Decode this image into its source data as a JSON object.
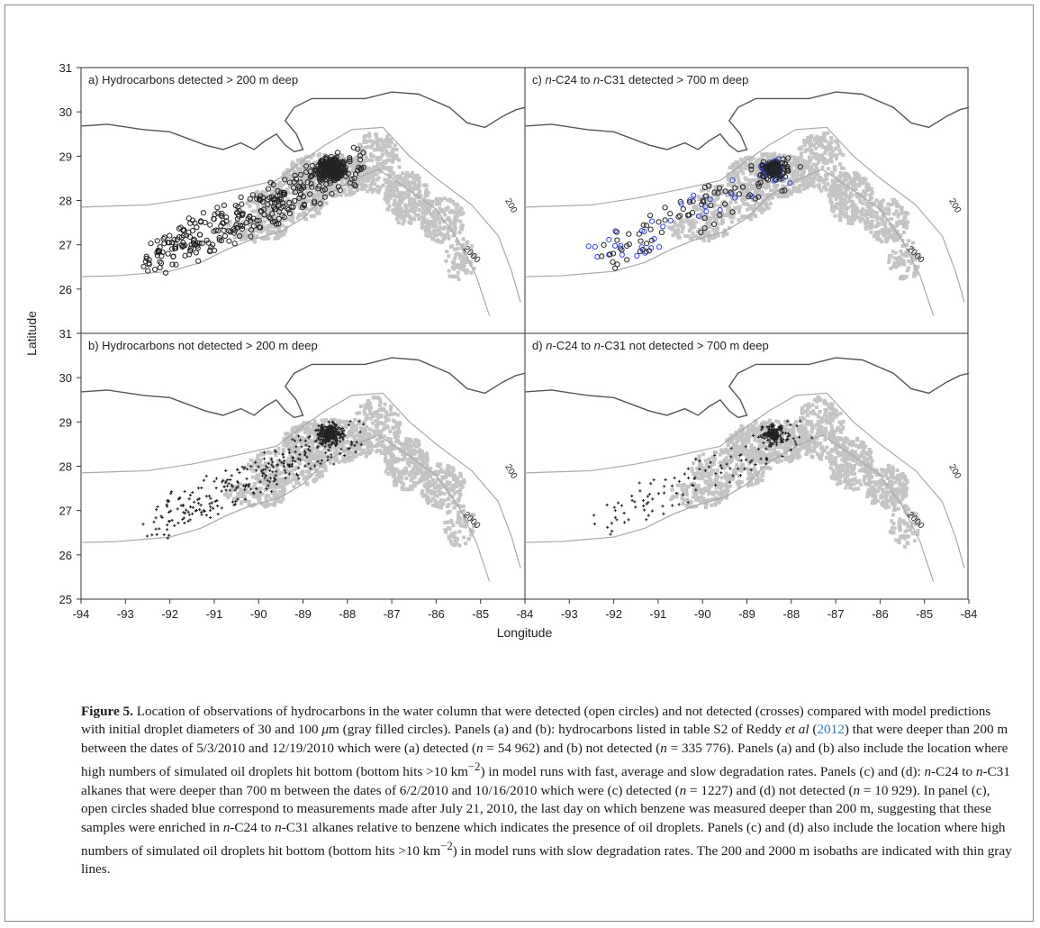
{
  "figure": {
    "ylabel": "Latitude",
    "xlabel": "Longitude",
    "x_ticks": [
      "-94",
      "-93",
      "-92",
      "-91",
      "-90",
      "-89",
      "-88",
      "-87",
      "-86",
      "-85",
      "-84"
    ],
    "y_ticks": [
      "25",
      "26",
      "27",
      "28",
      "29",
      "30",
      "31"
    ],
    "isobath_labels": [
      "200",
      "2000"
    ],
    "colors": {
      "model_gray": "#c4c4c4",
      "coast": "#555555",
      "isobath": "#a8a8a8",
      "blue_circles": "#3344dd",
      "black_marks": "#222222"
    },
    "panels": [
      {
        "id": "a",
        "title_pre": "a) Hydrocarbons detected > 200 m deep",
        "title_it": "",
        "title_mid": "",
        "title_it2": "",
        "title_post": "",
        "markers": "open-circles"
      },
      {
        "id": "b",
        "title_pre": "b) Hydrocarbons not detected > 200 m deep",
        "title_it": "",
        "title_mid": "",
        "title_it2": "",
        "title_post": "",
        "markers": "crosses"
      },
      {
        "id": "c",
        "title_pre": "c) ",
        "title_it": "n",
        "title_mid": "-C24 to ",
        "title_it2": "n",
        "title_post": "-C31 detected > 700 m deep",
        "markers": "open-circles-black-and-blue"
      },
      {
        "id": "d",
        "title_pre": "d) ",
        "title_it": "n",
        "title_mid": "-C24 to ",
        "title_it2": "n",
        "title_post": "-C31 not detected > 700 m deep",
        "markers": "crosses"
      }
    ]
  },
  "caption": {
    "label": "Figure 5.",
    "s1": " Location of observations of hydrocarbons in the water column that were detected (open circles) and not detected (crosses) compared with model predictions with initial droplet diameters of 30 and 100 ",
    "mu": "μ",
    "s2": "m (gray filled circles). Panels (a) and (b): hydrocarbons listed in table S2 of Reddy ",
    "etal": "et al",
    "s3": " (",
    "ref_year": "2012",
    "s4": ") that were deeper than 200 m between the dates of 5/3/2010 and 12/19/2010 which were (a) detected (",
    "n1": "n",
    "s5": " = 54 962) and (b) not detected (",
    "n2": "n",
    "s6": " = 335 776). Panels (a) and (b) also include the location where high numbers of simulated oil droplets hit bottom (bottom hits >10 km",
    "sup1": "−2",
    "s7": ") in model runs with fast, average and slow degradation rates. Panels (c) and (d): ",
    "n3": "n",
    "s8": "-C24 to ",
    "n4": "n",
    "s9": "-C31 alkanes that were deeper than 700 m between the dates of 6/2/2010 and 10/16/2010 which were (c) detected (",
    "n5": "n",
    "s10": " = 1227) and (d) not detected (",
    "n6": "n",
    "s11": " = 10 929). In panel (c), open circles shaded blue correspond to measurements made after July 21, 2010, the last day on which benzene was measured deeper than 200 m, suggesting that these samples were enriched in ",
    "n7": "n",
    "s12": "-C24 to ",
    "n8": "n",
    "s13": "-C31 alkanes relative to benzene which indicates the presence of oil droplets. Panels (c) and (d) also include the location where high numbers of simulated oil droplets hit bottom (bottom hits >10 km",
    "sup2": "−2",
    "s14": ") in model runs with slow degradation rates. The 200 and 2000 m isobaths are indicated with thin gray lines."
  }
}
